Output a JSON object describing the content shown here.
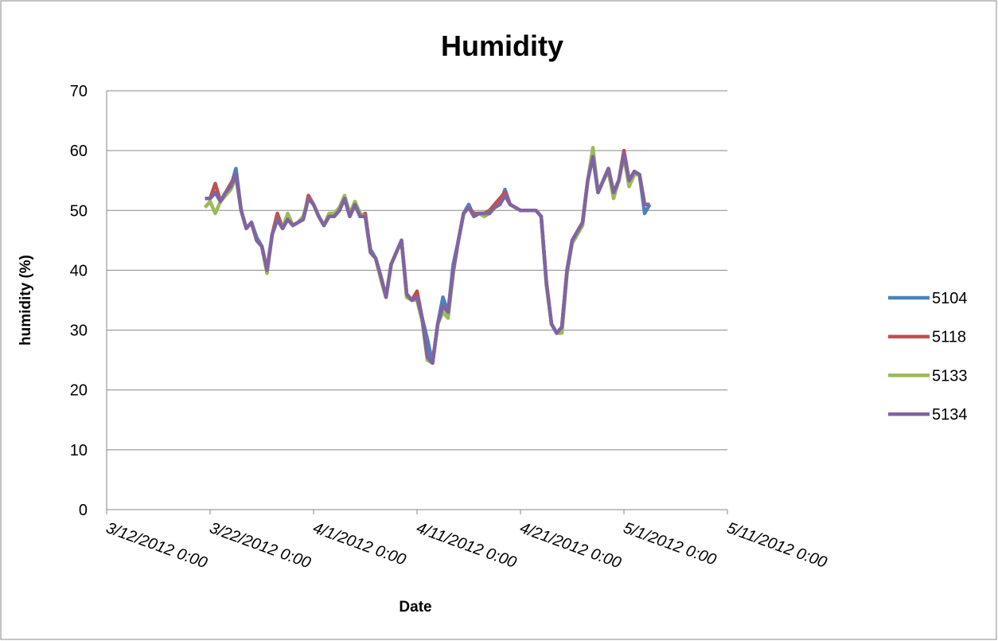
{
  "chart_data": {
    "type": "line",
    "title": "Humidity",
    "x_label": "Date",
    "y_label": "humidity (%)",
    "x": [
      "2012-03-21T12:00",
      "2012-03-22T00:00",
      "2012-03-22T12:00",
      "2012-03-23T00:00",
      "2012-03-23T12:00",
      "2012-03-24T00:00",
      "2012-03-24T12:00",
      "2012-03-25T00:00",
      "2012-03-25T12:00",
      "2012-03-26T00:00",
      "2012-03-26T12:00",
      "2012-03-27T00:00",
      "2012-03-27T12:00",
      "2012-03-28T00:00",
      "2012-03-28T12:00",
      "2012-03-29T00:00",
      "2012-03-29T12:00",
      "2012-03-30T00:00",
      "2012-03-30T12:00",
      "2012-03-31T00:00",
      "2012-03-31T12:00",
      "2012-04-01T00:00",
      "2012-04-01T12:00",
      "2012-04-02T00:00",
      "2012-04-02T12:00",
      "2012-04-03T00:00",
      "2012-04-03T12:00",
      "2012-04-04T00:00",
      "2012-04-04T12:00",
      "2012-04-05T00:00",
      "2012-04-05T12:00",
      "2012-04-06T00:00",
      "2012-04-06T12:00",
      "2012-04-07T00:00",
      "2012-04-07T12:00",
      "2012-04-08T00:00",
      "2012-04-08T12:00",
      "2012-04-09T00:00",
      "2012-04-09T12:00",
      "2012-04-10T00:00",
      "2012-04-10T12:00",
      "2012-04-11T00:00",
      "2012-04-11T12:00",
      "2012-04-12T00:00",
      "2012-04-12T12:00",
      "2012-04-13T00:00",
      "2012-04-13T12:00",
      "2012-04-14T00:00",
      "2012-04-14T12:00",
      "2012-04-15T00:00",
      "2012-04-15T12:00",
      "2012-04-16T00:00",
      "2012-04-16T12:00",
      "2012-04-17T00:00",
      "2012-04-17T12:00",
      "2012-04-18T00:00",
      "2012-04-18T12:00",
      "2012-04-19T00:00",
      "2012-04-19T12:00",
      "2012-04-20T00:00",
      "2012-04-20T12:00",
      "2012-04-21T00:00",
      "2012-04-21T12:00",
      "2012-04-22T00:00",
      "2012-04-22T12:00",
      "2012-04-23T00:00",
      "2012-04-23T12:00",
      "2012-04-24T00:00",
      "2012-04-24T12:00",
      "2012-04-25T00:00",
      "2012-04-25T12:00",
      "2012-04-26T00:00",
      "2012-04-26T12:00",
      "2012-04-27T00:00",
      "2012-04-27T12:00",
      "2012-04-28T00:00",
      "2012-04-28T12:00",
      "2012-04-29T00:00",
      "2012-04-29T12:00",
      "2012-04-30T00:00",
      "2012-04-30T12:00",
      "2012-05-01T00:00",
      "2012-05-01T12:00",
      "2012-05-02T00:00",
      "2012-05-02T12:00",
      "2012-05-03T00:00",
      "2012-05-03T12:00"
    ],
    "series": [
      {
        "name": "5104",
        "color": "#4f81bd",
        "values": [
          52,
          52,
          53,
          51.5,
          53,
          54,
          57,
          50,
          47,
          48,
          45.5,
          44,
          40,
          46,
          48.5,
          47,
          48.5,
          47.5,
          48,
          48.5,
          52,
          51,
          49,
          47.5,
          49,
          49,
          50,
          52,
          49,
          51,
          49,
          49,
          43.5,
          42,
          39,
          35.5,
          41,
          43,
          45,
          36,
          35,
          35.5,
          32,
          28.5,
          24.5,
          31,
          35.5,
          33,
          41,
          45,
          49.5,
          51,
          49,
          49.5,
          49.5,
          49.5,
          50.5,
          51,
          53.5,
          51,
          50.5,
          50,
          50,
          50,
          50,
          49,
          38,
          31,
          29.5,
          30.5,
          40,
          45,
          46.5,
          48,
          55,
          59,
          53,
          55,
          57,
          53,
          55,
          59.5,
          55,
          56.5,
          56,
          49.5,
          51
        ]
      },
      {
        "name": "5118",
        "color": "#c0504d",
        "values": [
          52,
          52,
          54.5,
          51.5,
          53,
          54.5,
          56,
          50,
          47,
          48,
          45,
          44,
          40,
          46,
          49.5,
          47,
          48.5,
          47.5,
          48,
          48.5,
          52.5,
          51,
          49,
          47.5,
          49,
          49,
          50,
          52,
          49,
          51,
          49,
          49.5,
          43,
          42,
          39,
          35.5,
          41,
          43,
          45,
          36,
          35,
          36.5,
          32,
          25.5,
          24.5,
          31,
          34,
          33,
          40,
          45,
          49.5,
          50.5,
          49.5,
          49.5,
          49.5,
          50,
          51,
          52,
          53,
          51,
          50.5,
          50,
          50,
          50,
          50,
          49,
          38,
          31,
          29.5,
          30.5,
          40,
          45,
          46.5,
          48,
          55,
          59.5,
          53,
          55,
          57,
          53,
          55,
          60,
          55,
          56.5,
          56,
          51,
          51
        ]
      },
      {
        "name": "5133",
        "color": "#9bbb59",
        "values": [
          50.5,
          51.5,
          49.5,
          51.5,
          52.5,
          53.5,
          55.5,
          50,
          47,
          48,
          45,
          44,
          39.5,
          46,
          48.5,
          47,
          49.5,
          47.5,
          48,
          49,
          52,
          51,
          49,
          47.5,
          49.5,
          49.5,
          50.5,
          52.5,
          49.5,
          51.5,
          49.5,
          49,
          43,
          42,
          38.5,
          35.5,
          41,
          43,
          45,
          35.5,
          35,
          35,
          31.5,
          25,
          24.5,
          31,
          33,
          32,
          39.5,
          45,
          49.5,
          50.5,
          49,
          49.5,
          49,
          49.5,
          50.5,
          51,
          52.5,
          51,
          50.5,
          50,
          50,
          50,
          50,
          49,
          37.5,
          31,
          29.5,
          29.5,
          39.5,
          44.5,
          46,
          47.5,
          55,
          60.5,
          53,
          55,
          56.5,
          52,
          55,
          59,
          54,
          56,
          56,
          51,
          51
        ]
      },
      {
        "name": "5134",
        "color": "#8064a2",
        "values": [
          52,
          52,
          53,
          51.5,
          53,
          54,
          56,
          50,
          47,
          48,
          45,
          44,
          40,
          46,
          48.5,
          47,
          48.5,
          47.5,
          48,
          48.5,
          52,
          51,
          49,
          47.5,
          49,
          49,
          50,
          52,
          49,
          51,
          49,
          49,
          43,
          42,
          39,
          35.5,
          41,
          43,
          45,
          36,
          35,
          35.5,
          32,
          25.5,
          24.5,
          31,
          34,
          33,
          40,
          45,
          49.5,
          50.5,
          49,
          49.5,
          49.5,
          49.5,
          50.5,
          51,
          52.5,
          51,
          50.5,
          50,
          50,
          50,
          50,
          49,
          38,
          31,
          29.5,
          30.5,
          40,
          45,
          46.5,
          48,
          55,
          59,
          53,
          55,
          57,
          53,
          55,
          59.5,
          55,
          56.5,
          56,
          51,
          51
        ]
      }
    ],
    "xlim": [
      "2012-03-12T00:00",
      "2012-05-11T00:00"
    ],
    "xticks": [
      {
        "value": "2012-03-12T00:00",
        "label": "3/12/2012 0:00"
      },
      {
        "value": "2012-03-22T00:00",
        "label": "3/22/2012 0:00"
      },
      {
        "value": "2012-04-01T00:00",
        "label": "4/1/2012 0:00"
      },
      {
        "value": "2012-04-11T00:00",
        "label": "4/11/2012 0:00"
      },
      {
        "value": "2012-04-21T00:00",
        "label": "4/21/2012 0:00"
      },
      {
        "value": "2012-05-01T00:00",
        "label": "5/1/2012 0:00"
      },
      {
        "value": "2012-05-11T00:00",
        "label": "5/11/2012 0:00"
      }
    ],
    "ylim": [
      0,
      70
    ],
    "yticks": [
      0,
      10,
      20,
      30,
      40,
      50,
      60,
      70
    ],
    "grid": true,
    "legend": "right"
  }
}
